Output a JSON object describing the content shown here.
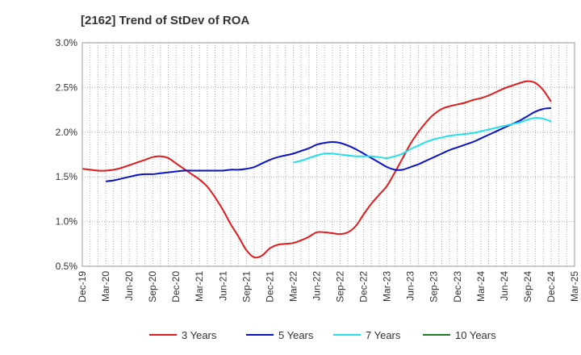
{
  "chart_data": {
    "type": "line",
    "title": "[2162]  Trend of StDev of ROA",
    "xlabel": "",
    "ylabel": "",
    "ylim": [
      0.5,
      3.0
    ],
    "y_ticks": [
      "0.5%",
      "1.0%",
      "1.5%",
      "2.0%",
      "2.5%",
      "3.0%"
    ],
    "x_ticks": [
      "Dec-19",
      "Mar-20",
      "Jun-20",
      "Sep-20",
      "Dec-20",
      "Mar-21",
      "Jun-21",
      "Sep-21",
      "Dec-21",
      "Mar-22",
      "Jun-22",
      "Sep-22",
      "Dec-22",
      "Mar-23",
      "Jun-23",
      "Sep-23",
      "Dec-23",
      "Mar-24",
      "Jun-24",
      "Sep-24",
      "Dec-24",
      "Mar-25"
    ],
    "grid": true,
    "legend_position": "bottom",
    "series": [
      {
        "name": "3 Years",
        "color": "#e31a1c",
        "points": [
          [
            "Dec-19",
            1.59
          ],
          [
            "Jan-20",
            1.58
          ],
          [
            "Feb-20",
            1.57
          ],
          [
            "Mar-20",
            1.57
          ],
          [
            "Apr-20",
            1.58
          ],
          [
            "May-20",
            1.6
          ],
          [
            "Jun-20",
            1.63
          ],
          [
            "Jul-20",
            1.66
          ],
          [
            "Aug-20",
            1.69
          ],
          [
            "Sep-20",
            1.72
          ],
          [
            "Oct-20",
            1.73
          ],
          [
            "Nov-20",
            1.71
          ],
          [
            "Dec-20",
            1.65
          ],
          [
            "Jan-21",
            1.59
          ],
          [
            "Feb-21",
            1.53
          ],
          [
            "Mar-21",
            1.47
          ],
          [
            "Apr-21",
            1.39
          ],
          [
            "May-21",
            1.27
          ],
          [
            "Jun-21",
            1.13
          ],
          [
            "Jul-21",
            0.97
          ],
          [
            "Aug-21",
            0.83
          ],
          [
            "Sep-21",
            0.68
          ],
          [
            "Oct-21",
            0.6
          ],
          [
            "Nov-21",
            0.62
          ],
          [
            "Dec-21",
            0.7
          ],
          [
            "Jan-22",
            0.74
          ],
          [
            "Feb-22",
            0.75
          ],
          [
            "Mar-22",
            0.76
          ],
          [
            "Apr-22",
            0.79
          ],
          [
            "May-22",
            0.83
          ],
          [
            "Jun-22",
            0.88
          ],
          [
            "Jul-22",
            0.88
          ],
          [
            "Aug-22",
            0.87
          ],
          [
            "Sep-22",
            0.86
          ],
          [
            "Oct-22",
            0.88
          ],
          [
            "Nov-22",
            0.95
          ],
          [
            "Dec-22",
            1.08
          ],
          [
            "Jan-23",
            1.2
          ],
          [
            "Feb-23",
            1.3
          ],
          [
            "Mar-23",
            1.4
          ],
          [
            "Apr-23",
            1.55
          ],
          [
            "May-23",
            1.71
          ],
          [
            "Jun-23",
            1.87
          ],
          [
            "Jul-23",
            2.0
          ],
          [
            "Aug-23",
            2.11
          ],
          [
            "Sep-23",
            2.2
          ],
          [
            "Oct-23",
            2.26
          ],
          [
            "Nov-23",
            2.29
          ],
          [
            "Dec-23",
            2.31
          ],
          [
            "Jan-24",
            2.33
          ],
          [
            "Feb-24",
            2.36
          ],
          [
            "Mar-24",
            2.38
          ],
          [
            "Apr-24",
            2.41
          ],
          [
            "May-24",
            2.45
          ],
          [
            "Jun-24",
            2.49
          ],
          [
            "Jul-24",
            2.52
          ],
          [
            "Aug-24",
            2.55
          ],
          [
            "Sep-24",
            2.57
          ],
          [
            "Oct-24",
            2.55
          ],
          [
            "Nov-24",
            2.47
          ],
          [
            "Dec-24",
            2.34
          ]
        ]
      },
      {
        "name": "5 Years",
        "color": "#0a12c9",
        "points": [
          [
            "Mar-20",
            1.45
          ],
          [
            "Apr-20",
            1.46
          ],
          [
            "May-20",
            1.48
          ],
          [
            "Jun-20",
            1.5
          ],
          [
            "Jul-20",
            1.52
          ],
          [
            "Aug-20",
            1.53
          ],
          [
            "Sep-20",
            1.53
          ],
          [
            "Oct-20",
            1.54
          ],
          [
            "Nov-20",
            1.55
          ],
          [
            "Dec-20",
            1.56
          ],
          [
            "Jan-21",
            1.57
          ],
          [
            "Feb-21",
            1.57
          ],
          [
            "Mar-21",
            1.57
          ],
          [
            "Apr-21",
            1.57
          ],
          [
            "May-21",
            1.57
          ],
          [
            "Jun-21",
            1.57
          ],
          [
            "Jul-21",
            1.58
          ],
          [
            "Aug-21",
            1.58
          ],
          [
            "Sep-21",
            1.59
          ],
          [
            "Oct-21",
            1.61
          ],
          [
            "Nov-21",
            1.65
          ],
          [
            "Dec-21",
            1.69
          ],
          [
            "Jan-22",
            1.72
          ],
          [
            "Feb-22",
            1.74
          ],
          [
            "Mar-22",
            1.76
          ],
          [
            "Apr-22",
            1.79
          ],
          [
            "May-22",
            1.82
          ],
          [
            "Jun-22",
            1.86
          ],
          [
            "Jul-22",
            1.88
          ],
          [
            "Aug-22",
            1.89
          ],
          [
            "Sep-22",
            1.88
          ],
          [
            "Oct-22",
            1.85
          ],
          [
            "Nov-22",
            1.81
          ],
          [
            "Dec-22",
            1.76
          ],
          [
            "Jan-23",
            1.71
          ],
          [
            "Feb-23",
            1.66
          ],
          [
            "Mar-23",
            1.61
          ],
          [
            "Apr-23",
            1.58
          ],
          [
            "May-23",
            1.58
          ],
          [
            "Jun-23",
            1.61
          ],
          [
            "Jul-23",
            1.64
          ],
          [
            "Aug-23",
            1.68
          ],
          [
            "Sep-23",
            1.72
          ],
          [
            "Oct-23",
            1.76
          ],
          [
            "Nov-23",
            1.8
          ],
          [
            "Dec-23",
            1.83
          ],
          [
            "Jan-24",
            1.86
          ],
          [
            "Feb-24",
            1.89
          ],
          [
            "Mar-24",
            1.93
          ],
          [
            "Apr-24",
            1.97
          ],
          [
            "May-24",
            2.01
          ],
          [
            "Jun-24",
            2.05
          ],
          [
            "Jul-24",
            2.09
          ],
          [
            "Aug-24",
            2.13
          ],
          [
            "Sep-24",
            2.18
          ],
          [
            "Oct-24",
            2.23
          ],
          [
            "Nov-24",
            2.26
          ],
          [
            "Dec-24",
            2.27
          ]
        ]
      },
      {
        "name": "7 Years",
        "color": "#22e0ec",
        "points": [
          [
            "Mar-22",
            1.66
          ],
          [
            "Apr-22",
            1.68
          ],
          [
            "May-22",
            1.71
          ],
          [
            "Jun-22",
            1.74
          ],
          [
            "Jul-22",
            1.76
          ],
          [
            "Aug-22",
            1.76
          ],
          [
            "Sep-22",
            1.75
          ],
          [
            "Oct-22",
            1.74
          ],
          [
            "Nov-22",
            1.73
          ],
          [
            "Dec-22",
            1.73
          ],
          [
            "Jan-23",
            1.73
          ],
          [
            "Feb-23",
            1.72
          ],
          [
            "Mar-23",
            1.71
          ],
          [
            "Apr-23",
            1.73
          ],
          [
            "May-23",
            1.76
          ],
          [
            "Jun-23",
            1.81
          ],
          [
            "Jul-23",
            1.85
          ],
          [
            "Aug-23",
            1.89
          ],
          [
            "Sep-23",
            1.92
          ],
          [
            "Oct-23",
            1.94
          ],
          [
            "Nov-23",
            1.96
          ],
          [
            "Dec-23",
            1.97
          ],
          [
            "Jan-24",
            1.98
          ],
          [
            "Feb-24",
            1.99
          ],
          [
            "Mar-24",
            2.01
          ],
          [
            "Apr-24",
            2.03
          ],
          [
            "May-24",
            2.05
          ],
          [
            "Jun-24",
            2.07
          ],
          [
            "Jul-24",
            2.09
          ],
          [
            "Aug-24",
            2.11
          ],
          [
            "Sep-24",
            2.14
          ],
          [
            "Oct-24",
            2.16
          ],
          [
            "Nov-24",
            2.15
          ],
          [
            "Dec-24",
            2.12
          ]
        ]
      },
      {
        "name": "10 Years",
        "color": "#1a7f1a",
        "points": []
      }
    ]
  }
}
